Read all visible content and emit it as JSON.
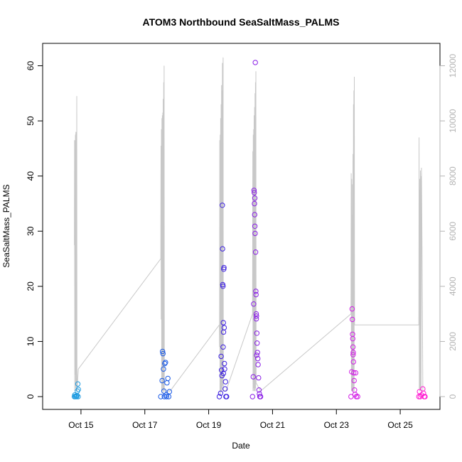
{
  "chart_data": {
    "type": "scatter",
    "title": "ATOM3 Northbound SeaSaltMass_PALMS",
    "xlabel": "Date",
    "ylabel": "SeaSaltMass_PALMS",
    "x_axis": {
      "type": "date",
      "range": [
        "2017-10-14T00:00",
        "2017-10-26T00:00"
      ],
      "ticks": [
        {
          "label": "Oct 15",
          "value": "2017-10-15"
        },
        {
          "label": "Oct 17",
          "value": "2017-10-17"
        },
        {
          "label": "Oct 19",
          "value": "2017-10-19"
        },
        {
          "label": "Oct 21",
          "value": "2017-10-21"
        },
        {
          "label": "Oct 23",
          "value": "2017-10-23"
        },
        {
          "label": "Oct 25",
          "value": "2017-10-25"
        }
      ]
    },
    "y_axis": {
      "range": [
        0,
        62
      ],
      "ticks": [
        0,
        10,
        20,
        30,
        40,
        50,
        60
      ]
    },
    "y2_axis": {
      "range": [
        0,
        12400
      ],
      "ticks": [
        0,
        2000,
        4000,
        6000,
        8000,
        10000,
        12000
      ],
      "color": "#b4b4b4"
    },
    "colors": {
      "flight1": "#1e9be0",
      "flight2": "#1a5ae6",
      "flight3": "#3b1ee0",
      "flight4": "#8a1ee6",
      "flight5": "#d21ee6",
      "flight6": "#ff1ed2",
      "altitude_line": "#c8c8c8"
    },
    "series": [
      {
        "type": "scatter",
        "color_key": "flight1",
        "points": [
          [
            "2017-10-14T19:00",
            0
          ],
          [
            "2017-10-14T19:45",
            0
          ],
          [
            "2017-10-14T20:20",
            0.1
          ],
          [
            "2017-10-14T21:00",
            0.2
          ],
          [
            "2017-10-14T21:20",
            1.0
          ],
          [
            "2017-10-14T21:40",
            2.3
          ],
          [
            "2017-10-14T22:00",
            1.3
          ],
          [
            "2017-10-14T21:50",
            0
          ],
          [
            "2017-10-14T19:20",
            0.3
          ],
          [
            "2017-10-14T20:45",
            0
          ]
        ]
      },
      {
        "type": "scatter",
        "color_key": "flight2",
        "points": [
          [
            "2017-10-17T12:00",
            0
          ],
          [
            "2017-10-17T13:00",
            2.9
          ],
          [
            "2017-10-17T13:20",
            8.2
          ],
          [
            "2017-10-17T13:40",
            7.8
          ],
          [
            "2017-10-17T14:00",
            5.0
          ],
          [
            "2017-10-17T14:20",
            1.0
          ],
          [
            "2017-10-17T15:00",
            6.0
          ],
          [
            "2017-10-17T15:30",
            6.2
          ],
          [
            "2017-10-17T16:00",
            0.3
          ],
          [
            "2017-10-17T16:40",
            2.5
          ],
          [
            "2017-10-17T17:20",
            3.3
          ],
          [
            "2017-10-17T18:00",
            0
          ],
          [
            "2017-10-17T18:30",
            0.9
          ],
          [
            "2017-10-17T16:20",
            0
          ],
          [
            "2017-10-17T14:40",
            0
          ]
        ]
      },
      {
        "type": "scatter",
        "color_key": "flight3",
        "points": [
          [
            "2017-10-19T08:00",
            0
          ],
          [
            "2017-10-19T09:00",
            0.6
          ],
          [
            "2017-10-19T09:20",
            7.3
          ],
          [
            "2017-10-19T09:40",
            4.8
          ],
          [
            "2017-10-19T10:00",
            3.8
          ],
          [
            "2017-10-19T10:15",
            34.7
          ],
          [
            "2017-10-19T10:25",
            26.8
          ],
          [
            "2017-10-19T10:35",
            20.3
          ],
          [
            "2017-10-19T10:45",
            20.0
          ],
          [
            "2017-10-19T11:00",
            13.4
          ],
          [
            "2017-10-19T11:10",
            11.7
          ],
          [
            "2017-10-19T11:20",
            23.1
          ],
          [
            "2017-10-19T11:30",
            23.4
          ],
          [
            "2017-10-19T11:40",
            12.5
          ],
          [
            "2017-10-19T11:50",
            6.0
          ],
          [
            "2017-10-19T12:00",
            5.0
          ],
          [
            "2017-10-19T12:20",
            1.4
          ],
          [
            "2017-10-19T12:40",
            2.7
          ],
          [
            "2017-10-19T13:00",
            0
          ],
          [
            "2017-10-19T13:30",
            0
          ],
          [
            "2017-10-19T10:50",
            9.0
          ],
          [
            "2017-10-19T11:05",
            4.2
          ]
        ]
      },
      {
        "type": "scatter",
        "color_key": "flight4",
        "points": [
          [
            "2017-10-20T09:00",
            0
          ],
          [
            "2017-10-20T09:30",
            3.6
          ],
          [
            "2017-10-20T09:50",
            16.8
          ],
          [
            "2017-10-20T10:05",
            37.4
          ],
          [
            "2017-10-20T10:15",
            37.0
          ],
          [
            "2017-10-20T10:25",
            35.0
          ],
          [
            "2017-10-20T10:35",
            33.0
          ],
          [
            "2017-10-20T10:45",
            30.9
          ],
          [
            "2017-10-20T10:55",
            29.6
          ],
          [
            "2017-10-20T11:05",
            60.6
          ],
          [
            "2017-10-20T11:15",
            26.2
          ],
          [
            "2017-10-20T11:25",
            19.1
          ],
          [
            "2017-10-20T11:35",
            18.5
          ],
          [
            "2017-10-20T11:45",
            15.0
          ],
          [
            "2017-10-20T11:55",
            14.6
          ],
          [
            "2017-10-20T12:10",
            11.5
          ],
          [
            "2017-10-20T12:25",
            9.7
          ],
          [
            "2017-10-20T12:40",
            8.0
          ],
          [
            "2017-10-20T12:55",
            6.9
          ],
          [
            "2017-10-20T13:10",
            5.8
          ],
          [
            "2017-10-20T13:30",
            3.4
          ],
          [
            "2017-10-20T13:50",
            1.2
          ],
          [
            "2017-10-20T14:10",
            0.5
          ],
          [
            "2017-10-20T14:30",
            0
          ],
          [
            "2017-10-20T15:00",
            0
          ],
          [
            "2017-10-20T10:40",
            36.0
          ],
          [
            "2017-10-20T11:50",
            14.1
          ],
          [
            "2017-10-20T12:05",
            7.5
          ]
        ]
      },
      {
        "type": "scatter",
        "color_key": "flight5",
        "points": [
          [
            "2017-10-23T11:00",
            0
          ],
          [
            "2017-10-23T11:30",
            4.5
          ],
          [
            "2017-10-23T11:50",
            15.9
          ],
          [
            "2017-10-23T12:00",
            14.0
          ],
          [
            "2017-10-23T12:10",
            11.3
          ],
          [
            "2017-10-23T12:20",
            10.5
          ],
          [
            "2017-10-23T12:30",
            9.0
          ],
          [
            "2017-10-23T12:40",
            8.0
          ],
          [
            "2017-10-23T12:50",
            6.3
          ],
          [
            "2017-10-23T13:05",
            4.3
          ],
          [
            "2017-10-23T13:20",
            2.9
          ],
          [
            "2017-10-23T13:40",
            1.2
          ],
          [
            "2017-10-23T14:00",
            0.4
          ],
          [
            "2017-10-23T14:30",
            4.3
          ],
          [
            "2017-10-23T15:00",
            0
          ],
          [
            "2017-10-23T16:00",
            0
          ],
          [
            "2017-10-23T12:35",
            7.6
          ]
        ]
      },
      {
        "type": "scatter",
        "color_key": "flight6",
        "points": [
          [
            "2017-10-25T14:00",
            0
          ],
          [
            "2017-10-25T14:30",
            0.9
          ],
          [
            "2017-10-25T15:00",
            0
          ],
          [
            "2017-10-25T16:00",
            0.3
          ],
          [
            "2017-10-25T17:00",
            1.4
          ],
          [
            "2017-10-25T17:30",
            0.6
          ],
          [
            "2017-10-25T18:00",
            0
          ],
          [
            "2017-10-25T18:40",
            0
          ]
        ]
      }
    ],
    "altitude_line": {
      "axis": "y2",
      "points": [
        [
          "2017-10-14T19:00",
          5500
        ],
        [
          "2017-10-14T19:10",
          9300
        ],
        [
          "2017-10-14T19:20",
          200
        ],
        [
          "2017-10-14T19:30",
          9300
        ],
        [
          "2017-10-14T19:40",
          800
        ],
        [
          "2017-10-14T19:50",
          9500
        ],
        [
          "2017-10-14T20:00",
          300
        ],
        [
          "2017-10-14T20:10",
          9600
        ],
        [
          "2017-10-14T20:20",
          400
        ],
        [
          "2017-10-14T20:30",
          9600
        ],
        [
          "2017-10-14T20:40",
          200
        ],
        [
          "2017-10-14T20:50",
          10900
        ],
        [
          "2017-10-14T21:00",
          200
        ],
        [
          "2017-10-14T22:00",
          1000
        ],
        [
          "2017-10-17T12:00",
          5000
        ],
        [
          "2017-10-17T12:10",
          9100
        ],
        [
          "2017-10-17T12:20",
          2800
        ],
        [
          "2017-10-17T12:30",
          9700
        ],
        [
          "2017-10-17T12:40",
          200
        ],
        [
          "2017-10-17T12:50",
          10100
        ],
        [
          "2017-10-17T13:00",
          400
        ],
        [
          "2017-10-17T13:10",
          10200
        ],
        [
          "2017-10-17T13:20",
          200
        ],
        [
          "2017-10-17T13:30",
          10300
        ],
        [
          "2017-10-17T13:40",
          100
        ],
        [
          "2017-10-17T13:50",
          10800
        ],
        [
          "2017-10-17T14:00",
          300
        ],
        [
          "2017-10-17T14:10",
          11400
        ],
        [
          "2017-10-17T14:20",
          200
        ],
        [
          "2017-10-17T14:30",
          12000
        ],
        [
          "2017-10-17T14:40",
          200
        ],
        [
          "2017-10-17T19:00",
          200
        ],
        [
          "2017-10-19T08:00",
          2600
        ],
        [
          "2017-10-19T08:10",
          1800
        ],
        [
          "2017-10-19T08:20",
          9300
        ],
        [
          "2017-10-19T08:30",
          200
        ],
        [
          "2017-10-19T08:40",
          9500
        ],
        [
          "2017-10-19T08:50",
          100
        ],
        [
          "2017-10-19T09:00",
          10100
        ],
        [
          "2017-10-19T09:10",
          200
        ],
        [
          "2017-10-19T09:20",
          10600
        ],
        [
          "2017-10-19T09:30",
          200
        ],
        [
          "2017-10-19T09:40",
          11300
        ],
        [
          "2017-10-19T09:50",
          200
        ],
        [
          "2017-10-19T10:00",
          11100
        ],
        [
          "2017-10-19T10:10",
          300
        ],
        [
          "2017-10-19T10:20",
          12100
        ],
        [
          "2017-10-19T10:30",
          400
        ],
        [
          "2017-10-19T10:50",
          12300
        ],
        [
          "2017-10-19T11:00",
          200
        ],
        [
          "2017-10-19T13:00",
          200
        ],
        [
          "2017-10-20T09:00",
          3000
        ],
        [
          "2017-10-20T09:10",
          8900
        ],
        [
          "2017-10-20T09:20",
          200
        ],
        [
          "2017-10-20T09:30",
          9500
        ],
        [
          "2017-10-20T09:40",
          300
        ],
        [
          "2017-10-20T09:50",
          9700
        ],
        [
          "2017-10-20T10:00",
          200
        ],
        [
          "2017-10-20T10:10",
          10200
        ],
        [
          "2017-10-20T10:20",
          300
        ],
        [
          "2017-10-20T10:30",
          10500
        ],
        [
          "2017-10-20T10:40",
          200
        ],
        [
          "2017-10-20T10:50",
          11000
        ],
        [
          "2017-10-20T11:00",
          200
        ],
        [
          "2017-10-20T11:10",
          11400
        ],
        [
          "2017-10-20T11:20",
          300
        ],
        [
          "2017-10-20T11:30",
          11800
        ],
        [
          "2017-10-20T11:40",
          500
        ],
        [
          "2017-10-20T15:00",
          200
        ],
        [
          "2017-10-23T11:00",
          3000
        ],
        [
          "2017-10-23T11:10",
          8100
        ],
        [
          "2017-10-23T11:20",
          200
        ],
        [
          "2017-10-23T11:30",
          7900
        ],
        [
          "2017-10-23T11:40",
          300
        ],
        [
          "2017-10-23T11:50",
          6600
        ],
        [
          "2017-10-23T12:00",
          200
        ],
        [
          "2017-10-23T12:10",
          7700
        ],
        [
          "2017-10-23T12:20",
          200
        ],
        [
          "2017-10-23T12:30",
          8800
        ],
        [
          "2017-10-23T12:40",
          200
        ],
        [
          "2017-10-23T12:50",
          10600
        ],
        [
          "2017-10-23T13:00",
          300
        ],
        [
          "2017-10-23T13:10",
          11100
        ],
        [
          "2017-10-23T13:20",
          200
        ],
        [
          "2017-10-23T13:30",
          11600
        ],
        [
          "2017-10-23T13:40",
          2600
        ],
        [
          "2017-10-25T14:00",
          2600
        ],
        [
          "2017-10-25T14:10",
          9400
        ],
        [
          "2017-10-25T14:20",
          300
        ],
        [
          "2017-10-25T14:30",
          7500
        ],
        [
          "2017-10-25T14:40",
          200
        ],
        [
          "2017-10-25T14:50",
          7900
        ],
        [
          "2017-10-25T15:00",
          300
        ],
        [
          "2017-10-25T15:10",
          8200
        ],
        [
          "2017-10-25T15:20",
          200
        ],
        [
          "2017-10-25T15:30",
          8000
        ],
        [
          "2017-10-25T15:40",
          200
        ],
        [
          "2017-10-25T16:00",
          8300
        ],
        [
          "2017-10-25T16:20",
          5700
        ],
        [
          "2017-10-25T17:00",
          200
        ]
      ]
    },
    "grid": false,
    "legend": "none"
  }
}
